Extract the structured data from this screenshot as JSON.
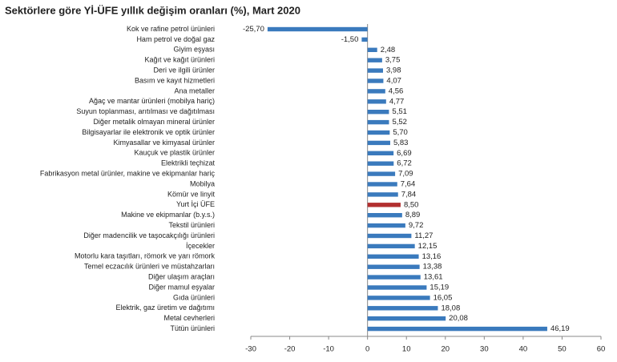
{
  "chart_data": {
    "type": "bar",
    "orientation": "horizontal",
    "title": "Sektörlere göre Yİ-ÜFE yıllık değişim oranları (%), Mart 2020",
    "categories": [
      "Kok ve rafine petrol ürünleri",
      "Ham petrol ve doğal gaz",
      "Giyim eşyası",
      "Kağıt ve kağıt ürünleri",
      "Deri ve ilgili ürünler",
      "Basım ve kayıt hizmetleri",
      "Ana metaller",
      "Ağaç ve mantar ürünleri (mobilya hariç)",
      "Suyun toplanması, arıtılması ve dağıtılması",
      "Diğer metalik olmayan mineral ürünler",
      "Bilgisayarlar ile elektronik ve optik ürünler",
      "Kimyasallar ve kimyasal ürünler",
      "Kauçuk ve plastik ürünler",
      "Elektrikli teçhizat",
      "Fabrikasyon metal ürünler, makine ve ekipmanlar hariç",
      "Mobilya",
      "Kömür ve linyit",
      "Yurt İçi ÜFE",
      "Makine ve ekipmanlar (b.y.s.)",
      "Tekstil ürünleri",
      "Diğer madencilik ve taşocakçılığı ürünleri",
      "İçecekler",
      "Motorlu kara taşıtları, römork ve yarı römork",
      "Temel eczacılık ürünleri ve müstahzarları",
      "Diğer ulaşım araçları",
      "Diğer mamul eşyalar",
      "Gıda ürünleri",
      "Elektrik, gaz üretim ve dağıtımı",
      "Metal cevherleri",
      "Tütün ürünleri"
    ],
    "values": [
      -25.7,
      -1.5,
      2.48,
      3.75,
      3.98,
      4.07,
      4.56,
      4.77,
      5.51,
      5.52,
      5.7,
      5.83,
      6.69,
      6.72,
      7.09,
      7.64,
      7.84,
      8.5,
      8.89,
      9.72,
      11.27,
      12.15,
      13.16,
      13.38,
      13.61,
      15.19,
      16.05,
      18.08,
      20.08,
      46.19
    ],
    "value_labels": [
      "-25,70",
      "-1,50",
      "2,48",
      "3,75",
      "3,98",
      "4,07",
      "4,56",
      "4,77",
      "5,51",
      "5,52",
      "5,70",
      "5,83",
      "6,69",
      "6,72",
      "7,09",
      "7,64",
      "7,84",
      "8,50",
      "8,89",
      "9,72",
      "11,27",
      "12,15",
      "13,16",
      "13,38",
      "13,61",
      "15,19",
      "16,05",
      "18,08",
      "20,08",
      "46,19"
    ],
    "colors": [
      "#3a7abd",
      "#3a7abd",
      "#3a7abd",
      "#3a7abd",
      "#3a7abd",
      "#3a7abd",
      "#3a7abd",
      "#3a7abd",
      "#3a7abd",
      "#3a7abd",
      "#3a7abd",
      "#3a7abd",
      "#3a7abd",
      "#3a7abd",
      "#3a7abd",
      "#3a7abd",
      "#3a7abd",
      "#b22f2f",
      "#3a7abd",
      "#3a7abd",
      "#3a7abd",
      "#3a7abd",
      "#3a7abd",
      "#3a7abd",
      "#3a7abd",
      "#3a7abd",
      "#3a7abd",
      "#3a7abd",
      "#3a7abd",
      "#3a7abd"
    ],
    "xlim": [
      -30,
      60
    ],
    "xticks": [
      -30,
      -20,
      -10,
      0,
      10,
      20,
      30,
      40,
      50,
      60
    ]
  }
}
